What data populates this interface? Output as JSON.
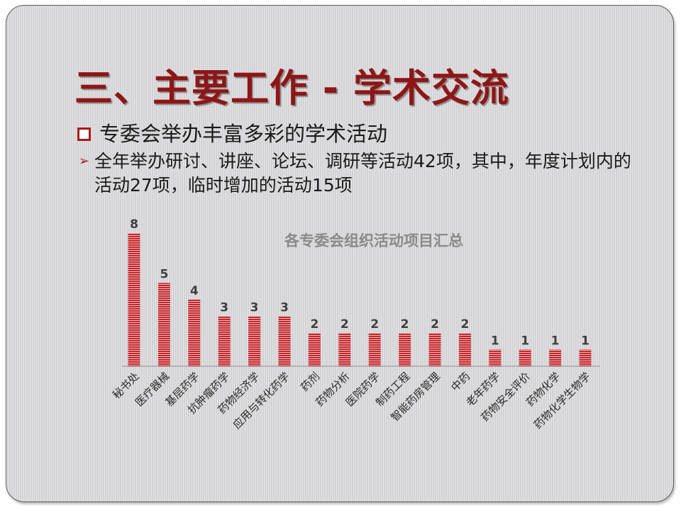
{
  "slide": {
    "title": "三、主要工作 - 学术交流",
    "bullet1": "专委会举办丰富多彩的学术活动",
    "bullet2": "全年举办研讨、讲座、论坛、调研等活动42项，其中，年度计划内的活动27项，临时增加的活动15项"
  },
  "chart_data": {
    "type": "bar",
    "title": "各专委会组织活动项目汇总",
    "categories": [
      "秘书处",
      "医疗器械",
      "基层药学",
      "抗肿瘤药学",
      "药物经济学",
      "应用与转化药学",
      "药剂",
      "药物分析",
      "医院药学",
      "制药工程",
      "智能药房管理",
      "中药",
      "老年药学",
      "药物安全评价",
      "药物化学",
      "药物化学生物学"
    ],
    "values": [
      8,
      5,
      4,
      3,
      3,
      3,
      2,
      2,
      2,
      2,
      2,
      2,
      1,
      1,
      1,
      1
    ],
    "xlabel": "",
    "ylabel": "",
    "ylim": [
      0,
      8
    ],
    "grid": false,
    "legend": "none",
    "bar_color": "#c0272d"
  }
}
